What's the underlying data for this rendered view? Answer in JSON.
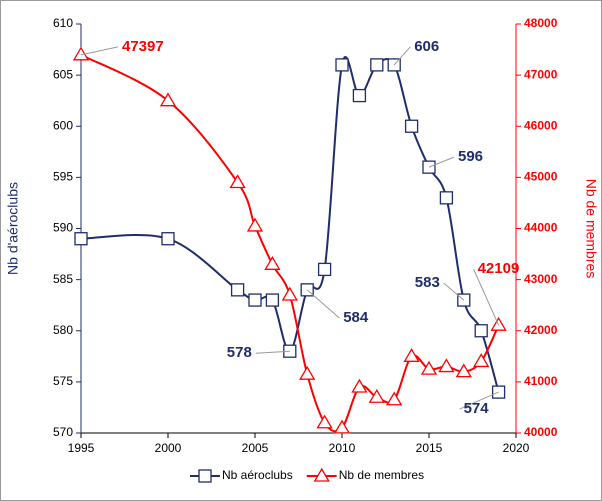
{
  "chart_data": {
    "type": "line",
    "xlabel": null,
    "ylabel": "Nb d'aéroclubs",
    "y2label": "Nb de membres",
    "x": [
      1995,
      2000,
      2004,
      2005,
      2006,
      2007,
      2008,
      2009,
      2010,
      2011,
      2012,
      2013,
      2014,
      2015,
      2016,
      2017,
      2018,
      2019
    ],
    "xlim": [
      1995,
      2020
    ],
    "xticks": [
      1995,
      2000,
      2005,
      2010,
      2015,
      2020
    ],
    "ylim": [
      570,
      610
    ],
    "yticks": [
      570,
      575,
      580,
      585,
      590,
      595,
      600,
      605,
      610
    ],
    "y2lim": [
      40000,
      48000
    ],
    "y2ticks": [
      40000,
      41000,
      42000,
      43000,
      44000,
      45000,
      46000,
      47000,
      48000
    ],
    "smooth": true,
    "grid": false,
    "legend": "bottom",
    "series": [
      {
        "name": "Nb aéroclubs",
        "color": "#1f2d6b",
        "marker": "square",
        "axis": "y",
        "values": [
          589,
          589,
          584,
          583,
          583,
          578,
          584,
          586,
          606,
          603,
          606,
          606,
          600,
          596,
          593,
          583,
          580,
          574
        ],
        "value_labels": [
          null,
          null,
          null,
          null,
          null,
          "578",
          "584",
          null,
          null,
          null,
          null,
          "606",
          null,
          "596",
          null,
          "583",
          null,
          "574"
        ]
      },
      {
        "name": "Nb de membres",
        "color": "#ff0000",
        "marker": "triangle",
        "axis": "y2",
        "values": [
          47397,
          46500,
          44900,
          44050,
          43300,
          42700,
          41150,
          40200,
          40100,
          40900,
          40700,
          40650,
          41500,
          41250,
          41300,
          41200,
          41400,
          42109
        ],
        "value_labels": [
          "47397",
          null,
          null,
          null,
          null,
          null,
          null,
          null,
          null,
          null,
          null,
          null,
          null,
          null,
          null,
          null,
          null,
          "42109"
        ]
      }
    ]
  }
}
